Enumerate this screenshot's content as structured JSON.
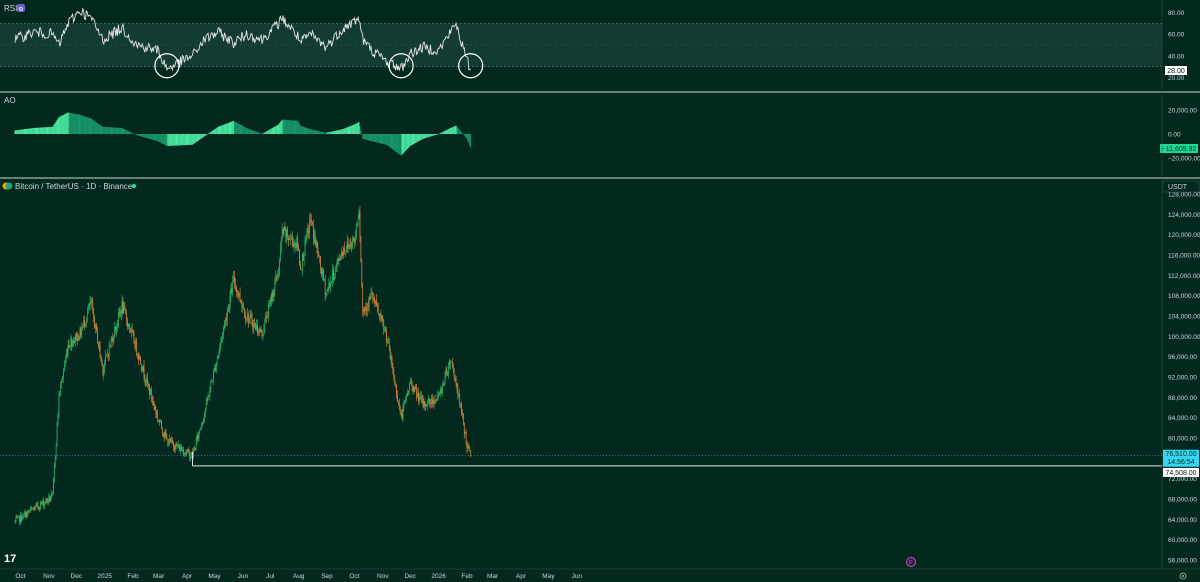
{
  "colors": {
    "background": "#03291f",
    "bull": "#2ebd6b",
    "bear": "#e08a3c",
    "rsi_line": "#e6e6e6",
    "rsi_band": "#1f4a40",
    "ao_bright": "#4ef0a8",
    "ao_dark": "#1a9a6c",
    "price_badge": "#37d6f0",
    "axis_text": "#d1d4dc",
    "divider": "#cfd8d3"
  },
  "rsi": {
    "label": "RSI",
    "ticks": [
      "80.00",
      "60.00",
      "40.00",
      "20.00"
    ],
    "tick_values": [
      80,
      60,
      40,
      20
    ],
    "value_badge": "28.00",
    "upper_band": 70,
    "lower_band": 30
  },
  "ao": {
    "label": "AO",
    "ticks": [
      "20,000.00",
      "0.00",
      "−20,000.00"
    ],
    "tick_values": [
      20000,
      0,
      -20000
    ],
    "value_badge": "−11,605.92"
  },
  "price": {
    "title": "Bitcoin / TetherUS · 1D · Binance",
    "currency_label": "USDT",
    "ticks": [
      "128,000.00",
      "124,000.00",
      "120,000.00",
      "116,000.00",
      "112,000.00",
      "108,000.00",
      "104,000.00",
      "100,000.00",
      "96,000.00",
      "92,000.00",
      "88,000.00",
      "84,000.00",
      "80,000.00",
      "76,000.00",
      "72,000.00",
      "68,000.00",
      "64,000.00",
      "60,000.00",
      "56,000.00"
    ],
    "last_price": "76,510.00",
    "countdown": "14:56:54",
    "support_label": "74,508.00",
    "support_value": 74508
  },
  "x_axis": {
    "labels": [
      "Oct",
      "Nov",
      "Dec",
      "2025",
      "Feb",
      "Mar",
      "Apr",
      "May",
      "Jun",
      "Jul",
      "Aug",
      "Sep",
      "Oct",
      "Nov",
      "Dec",
      "2026",
      "Feb",
      "Mar",
      "Apr",
      "May",
      "Jun"
    ]
  },
  "logo_text": "17",
  "chart_data": {
    "type": "line",
    "x": [
      "2024-09-25",
      "2024-10-15",
      "2024-11-05",
      "2024-11-12",
      "2024-11-22",
      "2024-12-05",
      "2024-12-17",
      "2024-12-30",
      "2025-01-20",
      "2025-02-05",
      "2025-02-28",
      "2025-03-10",
      "2025-04-07",
      "2025-04-20",
      "2025-05-05",
      "2025-05-22",
      "2025-06-05",
      "2025-06-22",
      "2025-07-10",
      "2025-07-14",
      "2025-07-31",
      "2025-08-03",
      "2025-08-14",
      "2025-08-31",
      "2025-09-18",
      "2025-10-01",
      "2025-10-06",
      "2025-10-10",
      "2025-10-20",
      "2025-11-05",
      "2025-11-21",
      "2025-12-01",
      "2025-12-15",
      "2026-01-01",
      "2026-01-14",
      "2026-01-20",
      "2026-02-01",
      "2026-02-05"
    ],
    "series": [
      {
        "values": [
          63500,
          66000,
          68500,
          88000,
          98500,
          100500,
          106500,
          93500,
          106000,
          97500,
          84000,
          79500,
          76500,
          85000,
          96500,
          111000,
          104000,
          100500,
          113000,
          120500,
          118000,
          113500,
          123000,
          108500,
          117000,
          119000,
          125500,
          105000,
          108000,
          100000,
          84000,
          91000,
          86500,
          88000,
          95500,
          91000,
          78500,
          76510
        ]
      }
    ],
    "ylabel": "USDT",
    "ylim": [
      56000,
      128000
    ],
    "support_level": 74508,
    "rsi": [
      55,
      62,
      60,
      50,
      70,
      82,
      75,
      55,
      66,
      50,
      45,
      28,
      40,
      55,
      62,
      52,
      60,
      55,
      70,
      75,
      58,
      52,
      60,
      48,
      65,
      72,
      75,
      55,
      45,
      35,
      28,
      42,
      48,
      45,
      62,
      70,
      35,
      28
    ],
    "ao": [
      3000,
      5000,
      6000,
      14000,
      18000,
      16000,
      13000,
      6000,
      5000,
      -1000,
      -6000,
      -10000,
      -9000,
      -2000,
      6000,
      11000,
      5000,
      0,
      8000,
      12000,
      11000,
      7000,
      4000,
      1000,
      4000,
      8000,
      10000,
      -4000,
      -6000,
      -9000,
      -18000,
      -10000,
      -4000,
      0,
      5000,
      7000,
      -4000,
      -11605.92
    ],
    "grid": false
  }
}
